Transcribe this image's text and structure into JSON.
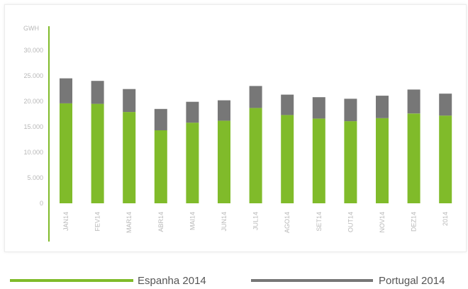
{
  "chart_data": {
    "type": "bar",
    "stacked": true,
    "title": "",
    "xlabel": "",
    "ylabel": "GWH",
    "ylim": [
      0,
      30000
    ],
    "yticks": [
      "30.000",
      "25.000",
      "20.000",
      "15.000",
      "10.000",
      "5.000",
      "0"
    ],
    "categories": [
      "JAN14",
      "FEV14",
      "MAR14",
      "ABR14",
      "MAI14",
      "JUN14",
      "JUL14",
      "AGO14",
      "SET14",
      "OUT14",
      "NOV14",
      "DEZ14",
      "2014"
    ],
    "series": [
      {
        "name": "Espanha 2014",
        "color": "#80bb2a",
        "values": [
          19600,
          19500,
          17900,
          14300,
          15800,
          16200,
          18700,
          17300,
          16600,
          16100,
          16700,
          17600,
          17200
        ]
      },
      {
        "name": "Portugal 2014",
        "color": "#777777",
        "values": [
          4900,
          4500,
          4500,
          4200,
          4100,
          4000,
          4300,
          4000,
          4200,
          4400,
          4400,
          4700,
          4300
        ]
      }
    ],
    "grid": false,
    "legend": "bottom",
    "axis_color": "#80bb2a"
  }
}
